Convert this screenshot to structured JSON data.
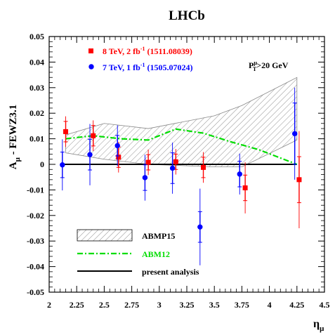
{
  "chart_data": {
    "type": "scatter",
    "title": "LHCb",
    "ylabel_main": "A",
    "ylabel_sub": "μ",
    "ylabel_rest": " - FEWZ3.1",
    "xlabel_main": "η",
    "xlabel_sub": "μ",
    "xlim": [
      2.0,
      4.5
    ],
    "ylim": [
      -0.05,
      0.05
    ],
    "xticks": [
      {
        "v": 2.0,
        "label": "2"
      },
      {
        "v": 2.25,
        "label": "2.25"
      },
      {
        "v": 2.5,
        "label": "2.5"
      },
      {
        "v": 2.75,
        "label": "2.75"
      },
      {
        "v": 3.0,
        "label": "3"
      },
      {
        "v": 3.25,
        "label": "3.25"
      },
      {
        "v": 3.5,
        "label": "3.5"
      },
      {
        "v": 3.75,
        "label": "3.75"
      },
      {
        "v": 4.0,
        "label": "4"
      },
      {
        "v": 4.25,
        "label": "4.25"
      },
      {
        "v": 4.5,
        "label": "4.5"
      }
    ],
    "yticks": [
      {
        "v": 0.05,
        "label": "0.05"
      },
      {
        "v": 0.04,
        "label": "0.04"
      },
      {
        "v": 0.03,
        "label": "0.03"
      },
      {
        "v": 0.02,
        "label": "0.02"
      },
      {
        "v": 0.01,
        "label": "0.01"
      },
      {
        "v": 0.0,
        "label": "0"
      },
      {
        "v": -0.01,
        "label": "-0.01"
      },
      {
        "v": -0.02,
        "label": "-0.02"
      },
      {
        "v": -0.03,
        "label": "-0.03"
      },
      {
        "v": -0.04,
        "label": "-0.04"
      },
      {
        "v": -0.05,
        "label": "-0.05"
      }
    ],
    "annotation_main": "P",
    "annotation_sup": "μ",
    "annotation_sub": "T",
    "annotation_rest": ">20 GeV",
    "series": [
      {
        "name": "8 TeV, 2 fb⁻¹ (1511.08039)",
        "label_main": "8 TeV, 2 fb",
        "label_sup": "-1",
        "label_rest": " (1511.08039)",
        "color": "#ff0000",
        "marker": "square",
        "points": [
          {
            "x": 2.15,
            "y": 0.0128,
            "stat": 0.004,
            "tot": 0.006
          },
          {
            "x": 2.4,
            "y": 0.0112,
            "stat": 0.004,
            "tot": 0.006
          },
          {
            "x": 2.63,
            "y": 0.0028,
            "stat": 0.004,
            "tot": 0.006
          },
          {
            "x": 2.9,
            "y": 0.0008,
            "stat": 0.003,
            "tot": 0.005
          },
          {
            "x": 3.15,
            "y": 0.001,
            "stat": 0.003,
            "tot": 0.005
          },
          {
            "x": 3.4,
            "y": -0.0012,
            "stat": 0.004,
            "tot": 0.006
          },
          {
            "x": 3.78,
            "y": -0.0092,
            "stat": 0.005,
            "tot": 0.01
          },
          {
            "x": 4.27,
            "y": -0.006,
            "stat": 0.009,
            "tot": 0.019
          }
        ]
      },
      {
        "name": "7 TeV, 1 fb⁻¹ (1505.07024)",
        "label_main": "7 TeV, 1 fb",
        "label_sup": "-1",
        "label_rest": " (1505.07024)",
        "color": "#0000ff",
        "marker": "circle",
        "points": [
          {
            "x": 2.12,
            "y": -0.0002,
            "stat": 0.005,
            "tot": 0.01
          },
          {
            "x": 2.37,
            "y": 0.0038,
            "stat": 0.006,
            "tot": 0.012
          },
          {
            "x": 2.62,
            "y": 0.0073,
            "stat": 0.004,
            "tot": 0.008
          },
          {
            "x": 2.87,
            "y": -0.0052,
            "stat": 0.005,
            "tot": 0.009
          },
          {
            "x": 3.12,
            "y": -0.0015,
            "stat": 0.006,
            "tot": 0.01
          },
          {
            "x": 3.37,
            "y": -0.0245,
            "stat": 0.006,
            "tot": 0.015
          },
          {
            "x": 3.73,
            "y": -0.0038,
            "stat": 0.005,
            "tot": 0.008
          },
          {
            "x": 4.23,
            "y": 0.012,
            "stat": 0.012,
            "tot": 0.018
          }
        ]
      }
    ],
    "bands": [
      {
        "name": "ABMP15",
        "upper": [
          [
            2.15,
            0.0115
          ],
          [
            2.5,
            0.016
          ],
          [
            2.9,
            0.014
          ],
          [
            3.5,
            0.019
          ],
          [
            3.75,
            0.023
          ],
          [
            4.25,
            0.034
          ]
        ],
        "lower": [
          [
            2.15,
            0.0045
          ],
          [
            2.5,
            0.002
          ],
          [
            2.9,
            0.0
          ],
          [
            3.5,
            -0.001
          ],
          [
            3.75,
            -0.001
          ],
          [
            4.25,
            0.0095
          ]
        ]
      }
    ],
    "lines": [
      {
        "name": "ABM12",
        "color": "#00dd00",
        "style": "dash-dot",
        "points": [
          [
            2.15,
            0.01
          ],
          [
            2.4,
            0.0112
          ],
          [
            2.65,
            0.01
          ],
          [
            2.9,
            0.0095
          ],
          [
            3.15,
            0.0138
          ],
          [
            3.4,
            0.0122
          ],
          [
            3.65,
            0.0088
          ],
          [
            3.9,
            0.0058
          ],
          [
            4.25,
            0.0
          ]
        ]
      },
      {
        "name": "present analysis",
        "color": "#000000",
        "style": "solid",
        "points": [
          [
            2.1,
            0.0
          ],
          [
            4.25,
            0.0
          ]
        ]
      }
    ],
    "legend_bottom": [
      {
        "label": "ABMP15",
        "kind": "band",
        "color": "#000000"
      },
      {
        "label": "ABM12",
        "kind": "dashdot",
        "color": "#00dd00"
      },
      {
        "label": "present analysis",
        "kind": "solid",
        "color": "#000000"
      }
    ]
  }
}
